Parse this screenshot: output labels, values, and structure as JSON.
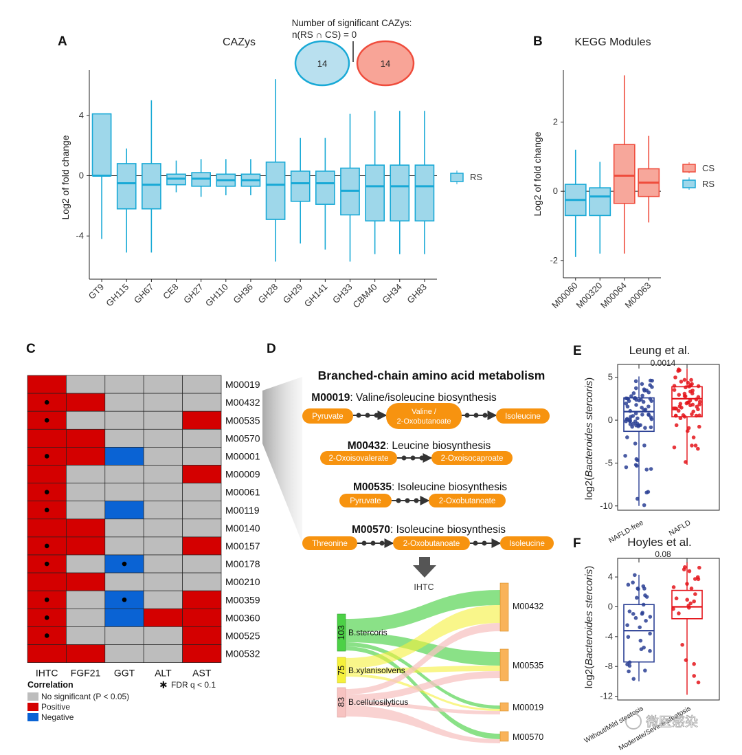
{
  "colors": {
    "rs_fill": "#9ed7ea",
    "rs_stroke": "#18a9d6",
    "cs_fill": "#f7a79b",
    "cs_stroke": "#ef4c3c",
    "heat_positive": "#d40000",
    "heat_negative": "#0a63d4",
    "heat_ns": "#bdbdbd",
    "box_blue": "#2a3f94",
    "box_red": "#e4141a",
    "path_node": "#f7930f"
  },
  "panels": {
    "A": {
      "label": "A",
      "title": "CAZys",
      "ylabel": "Log2 of fold change",
      "legend": [
        "RS"
      ],
      "venn": {
        "title_line1": "Number of significant CAZys:",
        "title_line2": "n(RS ∩ CS) = 0",
        "left": "14",
        "right": "14"
      }
    },
    "B": {
      "label": "B",
      "title": "KEGG Modules",
      "ylabel": "Log2 of fold change",
      "legend": [
        "CS",
        "RS"
      ]
    },
    "C": {
      "label": "C",
      "legend_title": "Correlation",
      "legend_items": [
        "No significant (P < 0.05)",
        "Positive",
        "Negative"
      ],
      "fdr_note": "FDR q < 0.1"
    },
    "D": {
      "label": "D",
      "title": "Branched-chain amino acid metabolism",
      "modules": [
        {
          "id": "M00019",
          "name": ": Valine/isoleucine biosynthesis",
          "nodes": [
            "Pyruvate",
            "Valine / 2-Oxobutanoate",
            "Isoleucine"
          ]
        },
        {
          "id": "M00432",
          "name": ": Leucine biosynthesis",
          "nodes": [
            "2-Oxoisovalerate",
            "2-Oxoisocaproate"
          ]
        },
        {
          "id": "M00535",
          "name": ": Isoleucine biosynthesis",
          "nodes": [
            "Pyruvate",
            "2-Oxobutanoate"
          ]
        },
        {
          "id": "M00570",
          "name": ": Isoleucine biosynthesis",
          "nodes": [
            "Threonine",
            "2-Oxobutanoate",
            "Isoleucine"
          ]
        }
      ],
      "arrow_label": "IHTC",
      "sankey_sources": [
        {
          "name": "B.stercoris",
          "count": "103",
          "color": "#4cd146"
        },
        {
          "name": "B.xylanisolvens",
          "count": "75",
          "color": "#f5f03c"
        },
        {
          "name": "B.cellulosilyticus",
          "count": "83",
          "color": "#f7c3c1"
        }
      ],
      "sankey_targets": [
        "M00432",
        "M00535",
        "M00019",
        "M00570"
      ]
    },
    "E": {
      "label": "E",
      "title": "Leung et al.",
      "pvalue": "0.0014",
      "ylabel_pre": "log2(",
      "ylabel_italic": "Bacteroides stercoris",
      "ylabel_post": ")",
      "groups": [
        "NAFLD-free",
        "NAFLD"
      ]
    },
    "F": {
      "label": "F",
      "title": "Hoyles et al.",
      "pvalue": "0.08",
      "ylabel_pre": "log2(",
      "ylabel_italic": "Bacteroides stercoris",
      "ylabel_post": ")",
      "groups": [
        "Without/Mild steatosis",
        "Moderate/Severe steatosis"
      ]
    }
  },
  "watermark": "微医感染",
  "chart_data": [
    {
      "type": "box",
      "panel": "A",
      "title": "CAZys",
      "ylabel": "Log2 of fold change",
      "ylim": [
        -6.5,
        7
      ],
      "yticks": [
        -4,
        0,
        4
      ],
      "reference_line": 0,
      "categories": [
        "GT9",
        "GH115",
        "GH67",
        "CE8",
        "GH27",
        "GH110",
        "GH36",
        "GH28",
        "GH29",
        "GH141",
        "GH33",
        "CBM40",
        "GH34",
        "GH83"
      ],
      "series": [
        {
          "name": "RS",
          "boxes": [
            {
              "min": -4.2,
              "q1": 0.0,
              "median": 0.0,
              "q3": 4.1,
              "max": 4.1
            },
            {
              "min": -5.1,
              "q1": -2.2,
              "median": -0.5,
              "q3": 0.8,
              "max": 1.8
            },
            {
              "min": -5.1,
              "q1": -2.2,
              "median": -0.6,
              "q3": 0.8,
              "max": 5.0
            },
            {
              "min": -1.1,
              "q1": -0.6,
              "median": -0.2,
              "q3": 0.1,
              "max": 1.0
            },
            {
              "min": -1.4,
              "q1": -0.7,
              "median": -0.2,
              "q3": 0.2,
              "max": 1.1
            },
            {
              "min": -1.3,
              "q1": -0.7,
              "median": -0.3,
              "q3": 0.1,
              "max": 1.1
            },
            {
              "min": -1.3,
              "q1": -0.7,
              "median": -0.3,
              "q3": 0.1,
              "max": 1.1
            },
            {
              "min": -5.7,
              "q1": -2.9,
              "median": -0.6,
              "q3": 0.9,
              "max": 6.4
            },
            {
              "min": -4.5,
              "q1": -1.7,
              "median": -0.5,
              "q3": 0.3,
              "max": 2.5
            },
            {
              "min": -4.9,
              "q1": -1.9,
              "median": -0.5,
              "q3": 0.3,
              "max": 2.5
            },
            {
              "min": -5.7,
              "q1": -2.6,
              "median": -1.0,
              "q3": 0.5,
              "max": 4.1
            },
            {
              "min": -5.2,
              "q1": -3.0,
              "median": -0.7,
              "q3": 0.7,
              "max": 4.3
            },
            {
              "min": -5.2,
              "q1": -3.0,
              "median": -0.7,
              "q3": 0.7,
              "max": 4.3
            },
            {
              "min": -5.2,
              "q1": -3.0,
              "median": -0.7,
              "q3": 0.7,
              "max": 4.3
            }
          ]
        }
      ],
      "legend": "right"
    },
    {
      "type": "box",
      "panel": "B",
      "title": "KEGG Modules",
      "ylabel": "Log2 of fold change",
      "ylim": [
        -2.5,
        3.5
      ],
      "yticks": [
        -2,
        0,
        2
      ],
      "reference_line": 0,
      "categories": [
        "M00060",
        "M00320",
        "M00064",
        "M00063"
      ],
      "boxes": [
        {
          "category": "M00060",
          "group": "RS",
          "min": -1.9,
          "q1": -0.7,
          "median": -0.25,
          "q3": 0.2,
          "max": 1.2
        },
        {
          "category": "M00320",
          "group": "RS",
          "min": -1.8,
          "q1": -0.7,
          "median": -0.15,
          "q3": 0.1,
          "max": 0.85
        },
        {
          "category": "M00064",
          "group": "CS",
          "min": -1.8,
          "q1": -0.35,
          "median": 0.45,
          "q3": 1.35,
          "max": 3.35
        },
        {
          "category": "M00063",
          "group": "CS",
          "min": -0.9,
          "q1": -0.15,
          "median": 0.25,
          "q3": 0.65,
          "max": 1.6
        }
      ],
      "legend": "right"
    },
    {
      "type": "heatmap",
      "panel": "C",
      "columns": [
        "IHTC",
        "FGF21",
        "GGT",
        "ALT",
        "AST"
      ],
      "rows": [
        "M00019",
        "M00432",
        "M00535",
        "M00570",
        "M00001",
        "M00009",
        "M00061",
        "M00119",
        "M00140",
        "M00157",
        "M00178",
        "M00210",
        "M00359",
        "M00360",
        "M00525",
        "M00532"
      ],
      "values": [
        [
          "P",
          "N",
          "N",
          "N",
          "N"
        ],
        [
          "P",
          "P",
          "N",
          "N",
          "N"
        ],
        [
          "P",
          "N",
          "N",
          "N",
          "P"
        ],
        [
          "P",
          "P",
          "N",
          "N",
          "N"
        ],
        [
          "P",
          "P",
          "-",
          "N",
          "N"
        ],
        [
          "P",
          "N",
          "N",
          "N",
          "P"
        ],
        [
          "P",
          "N",
          "N",
          "N",
          "N"
        ],
        [
          "P",
          "N",
          "-",
          "N",
          "N"
        ],
        [
          "P",
          "P",
          "N",
          "N",
          "N"
        ],
        [
          "P",
          "P",
          "N",
          "N",
          "P"
        ],
        [
          "P",
          "N",
          "-",
          "N",
          "N"
        ],
        [
          "P",
          "P",
          "N",
          "N",
          "N"
        ],
        [
          "P",
          "N",
          "-",
          "N",
          "P"
        ],
        [
          "P",
          "N",
          "-",
          "P",
          "P"
        ],
        [
          "P",
          "N",
          "N",
          "N",
          "P"
        ],
        [
          "P",
          "P",
          "N",
          "N",
          "P"
        ]
      ],
      "fdr_marks": [
        [
          0,
          0,
          0,
          0,
          0
        ],
        [
          1,
          0,
          0,
          0,
          0
        ],
        [
          1,
          0,
          0,
          0,
          0
        ],
        [
          0,
          0,
          0,
          0,
          0
        ],
        [
          1,
          0,
          0,
          0,
          0
        ],
        [
          0,
          0,
          0,
          0,
          0
        ],
        [
          1,
          0,
          0,
          0,
          0
        ],
        [
          1,
          0,
          0,
          0,
          0
        ],
        [
          0,
          0,
          0,
          0,
          0
        ],
        [
          1,
          0,
          0,
          0,
          0
        ],
        [
          1,
          0,
          1,
          0,
          0
        ],
        [
          0,
          0,
          0,
          0,
          0
        ],
        [
          1,
          0,
          1,
          0,
          0
        ],
        [
          1,
          0,
          0,
          0,
          0
        ],
        [
          1,
          0,
          0,
          0,
          0
        ],
        [
          0,
          0,
          0,
          0,
          0
        ]
      ]
    },
    {
      "type": "sankey",
      "panel": "D",
      "sources": [
        {
          "name": "B.stercoris",
          "value": 103
        },
        {
          "name": "B.xylanisolvens",
          "value": 75
        },
        {
          "name": "B.cellulosilyticus",
          "value": 83
        }
      ],
      "targets": [
        "M00432",
        "M00535",
        "M00019",
        "M00570"
      ],
      "links": [
        {
          "source": "B.stercoris",
          "target": "M00432"
        },
        {
          "source": "B.stercoris",
          "target": "M00535"
        },
        {
          "source": "B.stercoris",
          "target": "M00019"
        },
        {
          "source": "B.stercoris",
          "target": "M00570"
        },
        {
          "source": "B.xylanisolvens",
          "target": "M00432"
        },
        {
          "source": "B.xylanisolvens",
          "target": "M00535"
        },
        {
          "source": "B.xylanisolvens",
          "target": "M00019"
        },
        {
          "source": "B.cellulosilyticus",
          "target": "M00432"
        },
        {
          "source": "B.cellulosilyticus",
          "target": "M00535"
        },
        {
          "source": "B.cellulosilyticus",
          "target": "M00019"
        },
        {
          "source": "B.cellulosilyticus",
          "target": "M00570"
        }
      ]
    },
    {
      "type": "box",
      "panel": "E",
      "title": "Leung et al.",
      "ylim": [
        -10.5,
        6.5
      ],
      "yticks": [
        -10,
        -5,
        0,
        5
      ],
      "categories": [
        "NAFLD-free",
        "NAFLD"
      ],
      "boxes": [
        {
          "min": -10,
          "q1": -1.3,
          "median": 1.0,
          "q3": 2.6,
          "max": 5.1
        },
        {
          "min": -5.2,
          "q1": 0.4,
          "median": 2.5,
          "q3": 3.9,
          "max": 6.0
        }
      ],
      "significance": "0.0014"
    },
    {
      "type": "box",
      "panel": "F",
      "title": "Hoyles et al.",
      "ylim": [
        -12.5,
        6.5
      ],
      "yticks": [
        -12,
        -8,
        -4,
        0,
        4
      ],
      "categories": [
        "Without/Mild steatosis",
        "Moderate/Severe steatosis"
      ],
      "boxes": [
        {
          "min": -10,
          "q1": -7.4,
          "median": -3.2,
          "q3": 0.3,
          "max": 4.3
        },
        {
          "min": -11.8,
          "q1": -1.6,
          "median": 0.0,
          "q3": 2.2,
          "max": 6.0
        }
      ],
      "significance": "0.08"
    }
  ]
}
